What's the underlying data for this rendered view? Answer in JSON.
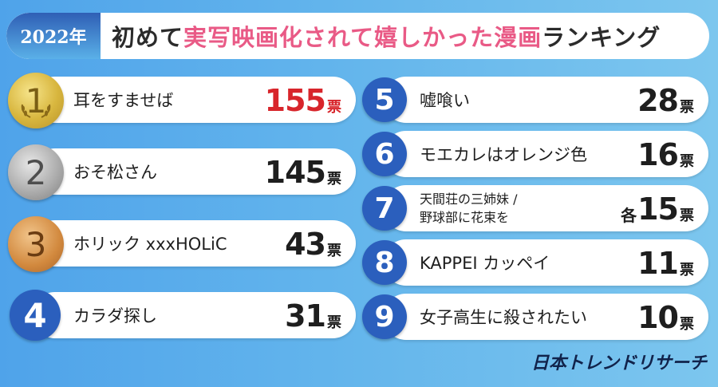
{
  "header": {
    "year": "2022年",
    "title_prefix": "初めて",
    "title_accent": "実写映画化されて嬉しかった漫画",
    "title_suffix": "ランキング"
  },
  "rankings": [
    {
      "rank": "1",
      "title": "耳をすませば",
      "votes": "155",
      "unit": "票"
    },
    {
      "rank": "2",
      "title": "おそ松さん",
      "votes": "145",
      "unit": "票"
    },
    {
      "rank": "3",
      "title": "ホリック xxxHOLiC",
      "votes": "43",
      "unit": "票"
    },
    {
      "rank": "4",
      "title": "カラダ探し",
      "votes": "31",
      "unit": "票"
    },
    {
      "rank": "5",
      "title": "嘘喰い",
      "votes": "28",
      "unit": "票"
    },
    {
      "rank": "6",
      "title": "モエカレはオレンジ色",
      "votes": "16",
      "unit": "票"
    },
    {
      "rank": "7",
      "title_line1": "天間荘の三姉妹 /",
      "title_line2": "野球部に花束を",
      "prefix": "各",
      "votes": "15",
      "unit": "票"
    },
    {
      "rank": "8",
      "title": "KAPPEI カッペイ",
      "votes": "11",
      "unit": "票"
    },
    {
      "rank": "9",
      "title": "女子高生に殺されたい",
      "votes": "10",
      "unit": "票"
    }
  ],
  "footer": {
    "brand": "日本トレンドリサーチ"
  },
  "colors": {
    "accent": "#e95a86",
    "top_votes": "#d8252b",
    "rank_blue": "#2b5fbd"
  }
}
